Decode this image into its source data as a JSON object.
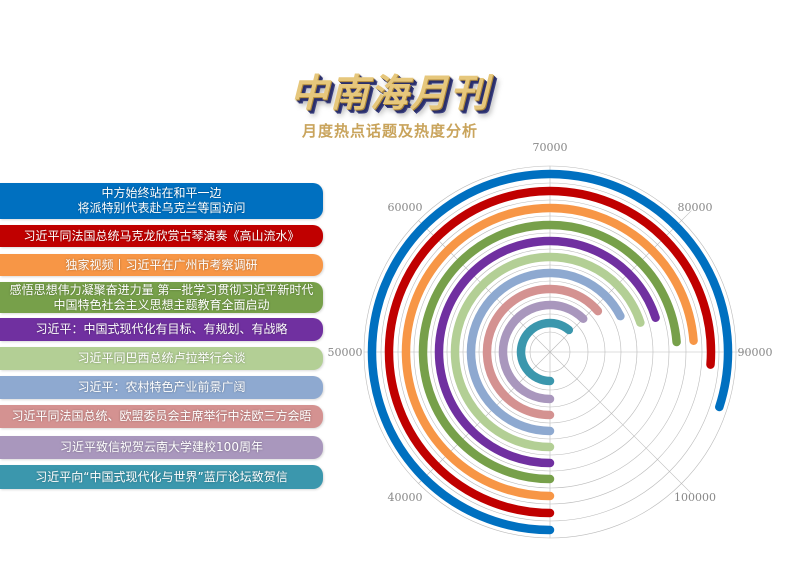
{
  "header": {
    "title": "中南海月刊",
    "subtitle": "月度热点话题及热度分析"
  },
  "chart_data": {
    "type": "radial-bar",
    "axis_ticks": [
      "40000",
      "50000",
      "60000",
      "70000",
      "80000",
      "90000",
      "100000"
    ],
    "axis_tick_values": [
      40000,
      50000,
      60000,
      70000,
      80000,
      90000,
      100000
    ],
    "axis_range": [
      30000,
      110000
    ],
    "direction": "clockwise from bottom",
    "grid": true,
    "categories": [
      [
        "中方始终站在和平一边",
        "将派特别代表赴乌克兰等国访问"
      ],
      [
        "习近平同法国总统马克龙欣赏古琴演奏《高山流水》"
      ],
      [
        "独家视频丨习近平在广州市考察调研"
      ],
      [
        "感悟思想伟力凝聚奋进力量 第一批学习贯彻习近平新时代",
        "中国特色社会主义思想主题教育全面启动"
      ],
      [
        "习近平：中国式现代化有目标、有规划、有战略"
      ],
      [
        "习近平同巴西总统卢拉举行会谈"
      ],
      [
        "习近平：农村特色产业前景广阔"
      ],
      [
        "习近平同法国总统、欧盟委员会主席举行中法欧三方会晤"
      ],
      [
        "习近平致信祝贺云南大学建校100周年"
      ],
      [
        "习近平向“中国式现代化与世界”蓝厅论坛致贺信"
      ]
    ],
    "values": [
      94000,
      91000,
      89000,
      89000,
      86000,
      86000,
      84000,
      81000,
      80000,
      79000
    ],
    "colors": [
      "#0070c0",
      "#c00000",
      "#f79646",
      "#77a04a",
      "#7030a0",
      "#b3cf95",
      "#8ea9d0",
      "#d49291",
      "#a997bd",
      "#3b97ad"
    ]
  }
}
